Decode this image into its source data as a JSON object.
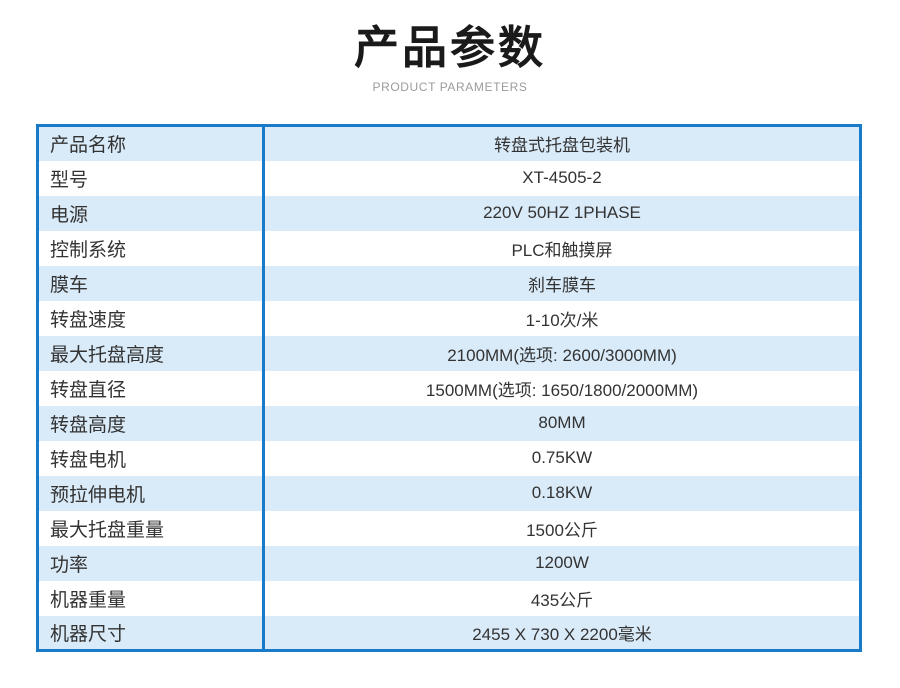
{
  "header": {
    "title": "产品参数",
    "subtitle": "PRODUCT PARAMETERS"
  },
  "table": {
    "rows": [
      {
        "label": "产品名称",
        "value": "转盘式托盘包装机"
      },
      {
        "label": "型号",
        "value": "XT-4505-2"
      },
      {
        "label": "电源",
        "value": "220V 50HZ 1PHASE"
      },
      {
        "label": "控制系统",
        "value": "PLC和触摸屏"
      },
      {
        "label": "膜车",
        "value": "刹车膜车"
      },
      {
        "label": "转盘速度",
        "value": "1-10次/米"
      },
      {
        "label": "最大托盘高度",
        "value": "2100MM(选项: 2600/3000MM)"
      },
      {
        "label": "转盘直径",
        "value": "1500MM(选项: 1650/1800/2000MM)"
      },
      {
        "label": "转盘高度",
        "value": "80MM"
      },
      {
        "label": "转盘电机",
        "value": "0.75KW"
      },
      {
        "label": "预拉伸电机",
        "value": "0.18KW"
      },
      {
        "label": "最大托盘重量",
        "value": "1500公斤"
      },
      {
        "label": "功率",
        "value": "1200W"
      },
      {
        "label": "机器重量",
        "value": "435公斤"
      },
      {
        "label": "机器尺寸",
        "value": "2455 X 730 X 2200毫米"
      }
    ]
  },
  "colors": {
    "accent_border": "#187bc9",
    "row_highlight": "#d9eaf8",
    "row_plain": "#ffffff",
    "title_text": "#1a1a1a",
    "subtitle_text": "#9b9b9b",
    "body_text": "#333333"
  }
}
